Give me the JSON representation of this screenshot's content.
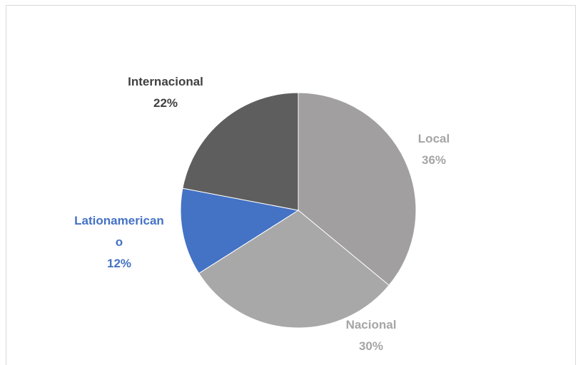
{
  "chart_data": {
    "type": "pie",
    "categories": [
      "Local",
      "Nacional",
      "Lationamericano",
      "Internacional"
    ],
    "values": [
      36,
      30,
      12,
      22
    ],
    "value_labels": [
      "36%",
      "30%",
      "12%",
      "22%"
    ],
    "colors": [
      "#a19f9f",
      "#a8a8a8",
      "#4472c4",
      "#5f5e5e"
    ],
    "label_colors": [
      "#a5a5a5",
      "#a5a5a5",
      "#4472c4",
      "#404040"
    ]
  }
}
